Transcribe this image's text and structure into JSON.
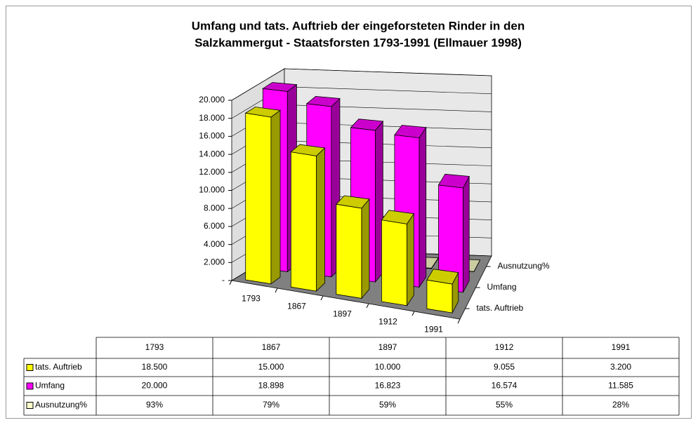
{
  "chart_data": {
    "type": "bar",
    "title": [
      "Umfang und tats. Auftrieb der eingeforsteten Rinder in den",
      "Salzkammergut - Staatsforsten 1793-1991 (Ellmauer 1998)"
    ],
    "categories": [
      "1793",
      "1867",
      "1897",
      "1912",
      "1991"
    ],
    "series": [
      {
        "name": "tats. Auftrieb",
        "color": "#ffff00",
        "values": [
          18500,
          15000,
          10000,
          9055,
          3200
        ],
        "value_labels": [
          "18.500",
          "15.000",
          "10.000",
          "9.055",
          "3.200"
        ]
      },
      {
        "name": "Umfang",
        "color": "#ff00ff",
        "values": [
          20000,
          18898,
          16823,
          16574,
          11585
        ],
        "value_labels": [
          "20.000",
          "18.898",
          "16.823",
          "16.574",
          "11.585"
        ]
      },
      {
        "name": "Ausnutzung%",
        "color": "#ffffcc",
        "values": [
          93,
          79,
          59,
          55,
          28
        ],
        "value_labels": [
          "93%",
          "79%",
          "59%",
          "55%",
          "28%"
        ]
      }
    ],
    "ylim": [
      0,
      20000
    ],
    "yticks": [
      {
        "value": 0,
        "label": "-"
      },
      {
        "value": 2000,
        "label": "2.000"
      },
      {
        "value": 4000,
        "label": "4.000"
      },
      {
        "value": 6000,
        "label": "6.000"
      },
      {
        "value": 8000,
        "label": "8.000"
      },
      {
        "value": 10000,
        "label": "10.000"
      },
      {
        "value": 12000,
        "label": "12.000"
      },
      {
        "value": 14000,
        "label": "14.000"
      },
      {
        "value": 16000,
        "label": "16.000"
      },
      {
        "value": 18000,
        "label": "18.000"
      },
      {
        "value": 20000,
        "label": "20.000"
      }
    ],
    "grid": true
  }
}
